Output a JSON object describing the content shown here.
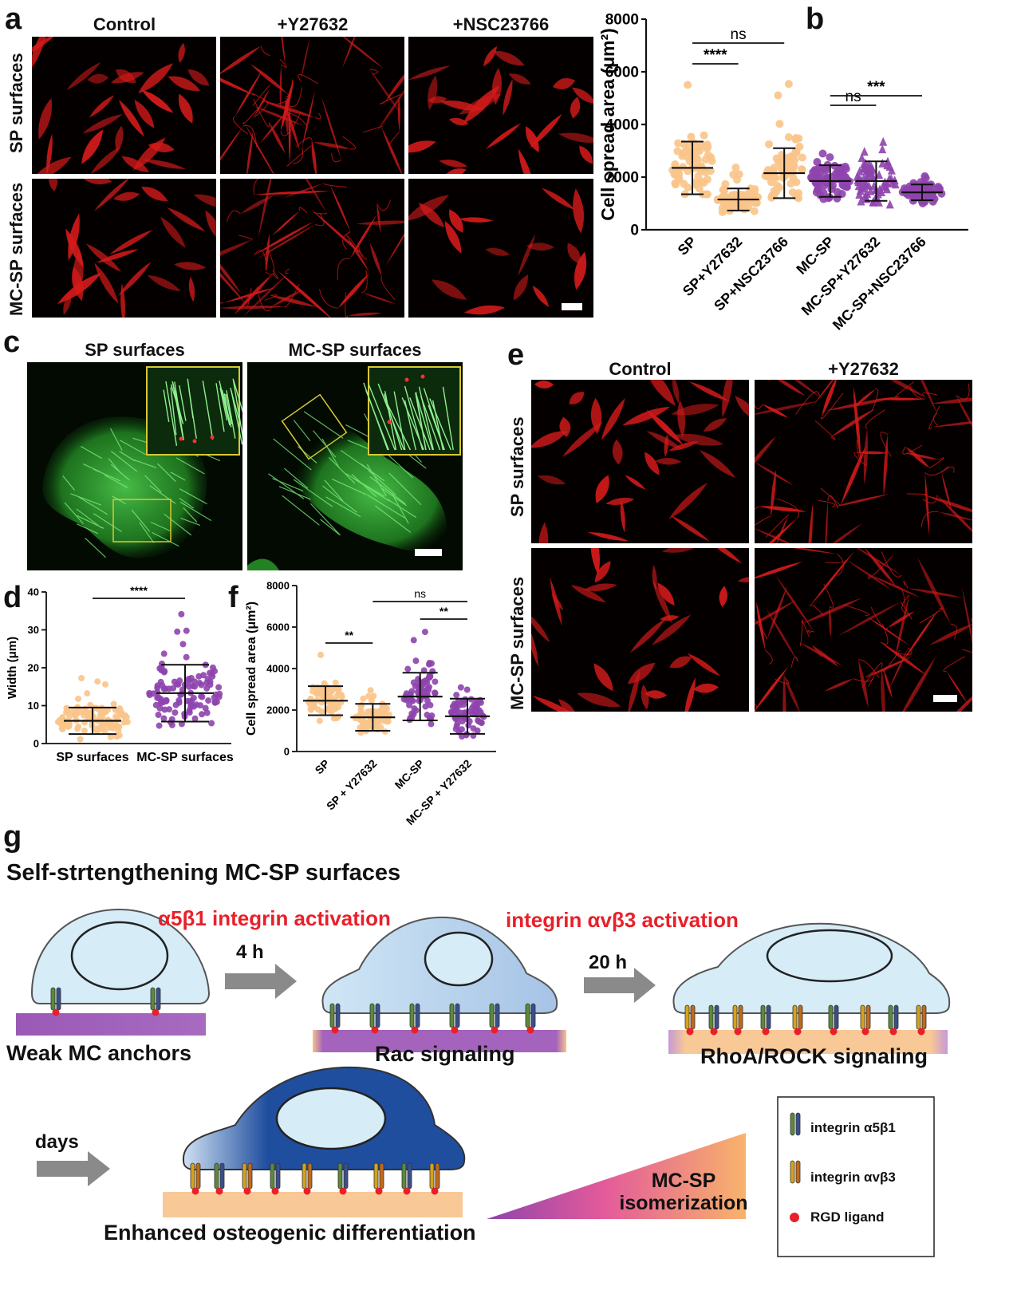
{
  "panels": {
    "a": {
      "label": "a",
      "columns": [
        "Control",
        "+Y27632",
        "+NSC23766"
      ],
      "rows": [
        "SP surfaces",
        "MC-SP surfaces"
      ]
    },
    "b": {
      "label": "b"
    },
    "c": {
      "label": "c",
      "columns": [
        "SP surfaces",
        "MC-SP surfaces"
      ]
    },
    "d": {
      "label": "d"
    },
    "e": {
      "label": "e",
      "columns": [
        "Control",
        "+Y27632"
      ],
      "rows": [
        "SP surfaces",
        "MC-SP surfaces"
      ]
    },
    "f": {
      "label": "f"
    },
    "g": {
      "label": "g",
      "title": "Self-strtengthening MC-SP surfaces",
      "activation1": "α5β1 integrin activation",
      "activation2": "integrin αvβ3 activation",
      "time1": "4 h",
      "time2": "20 h",
      "time3": "days",
      "stage1": "Weak MC anchors",
      "stage2": "Rac signaling",
      "stage3": "RhoA/ROCK signaling",
      "stage4": "Enhanced osteogenic differentiation",
      "isomerization_line1": "MC-SP",
      "isomerization_line2": "isomerization",
      "legend": [
        "integrin α5β1",
        "integrin αvβ3",
        "RGD ligand"
      ]
    }
  },
  "colors": {
    "orange": "#F9C489",
    "purple": "#8E44AD",
    "red_text": "#E8202A",
    "cell": "#D6ECF7",
    "dark_cell": "#1F4E9E"
  },
  "chart_data": [
    {
      "id": "b",
      "type": "scatter",
      "ylabel": "Cell spread area (μm²)",
      "ylim": [
        0,
        8000
      ],
      "yticks": [
        "0",
        "2000",
        "4000",
        "6000",
        "8000"
      ],
      "categories": [
        "SP",
        "SP+Y27632",
        "SP+NSC23766",
        "MC-SP",
        "MC-SP+Y27632",
        "MC-SP+NSC23766"
      ],
      "mean": [
        2350,
        1150,
        2150,
        1850,
        1850,
        1420
      ],
      "sd": [
        1000,
        420,
        950,
        600,
        750,
        300
      ],
      "min": [
        1350,
        100,
        1200,
        800,
        500,
        1000
      ],
      "max": [
        5850,
        2500,
        5900,
        3350,
        4000,
        2050
      ],
      "significance": [
        {
          "pair": [
            0,
            1
          ],
          "label": "****"
        },
        {
          "pair": [
            0,
            2
          ],
          "label": "ns"
        },
        {
          "pair": [
            3,
            4
          ],
          "label": "ns"
        },
        {
          "pair": [
            3,
            5
          ],
          "label": "***"
        }
      ]
    },
    {
      "id": "d",
      "type": "scatter",
      "ylabel": "Width (μm)",
      "ylim": [
        0,
        40
      ],
      "yticks": [
        "0",
        "10",
        "20",
        "30",
        "40"
      ],
      "categories": [
        "SP surfaces",
        "MC-SP surfaces"
      ],
      "mean": [
        6,
        13.3
      ],
      "sd": [
        3.5,
        7.5
      ],
      "min": [
        0.5,
        2
      ],
      "max": [
        18.5,
        36.5
      ],
      "significance": [
        {
          "pair": [
            0,
            1
          ],
          "label": "****"
        }
      ]
    },
    {
      "id": "f",
      "type": "scatter",
      "ylabel": "Cell spread area (μm²)",
      "ylim": [
        0,
        8000
      ],
      "yticks": [
        "0",
        "2000",
        "4000",
        "6000",
        "8000"
      ],
      "categories": [
        "SP",
        "SP + Y27632",
        "MC-SP",
        "MC-SP + Y27632"
      ],
      "mean": [
        2450,
        1650,
        2650,
        1700
      ],
      "sd": [
        700,
        650,
        1150,
        850
      ],
      "min": [
        1450,
        450,
        1200,
        100
      ],
      "max": [
        4900,
        3100,
        6100,
        3700
      ],
      "significance": [
        {
          "pair": [
            0,
            1
          ],
          "label": "**"
        },
        {
          "pair": [
            2,
            3
          ],
          "label": "**"
        },
        {
          "pair": [
            1,
            3
          ],
          "label": "ns"
        }
      ]
    }
  ]
}
